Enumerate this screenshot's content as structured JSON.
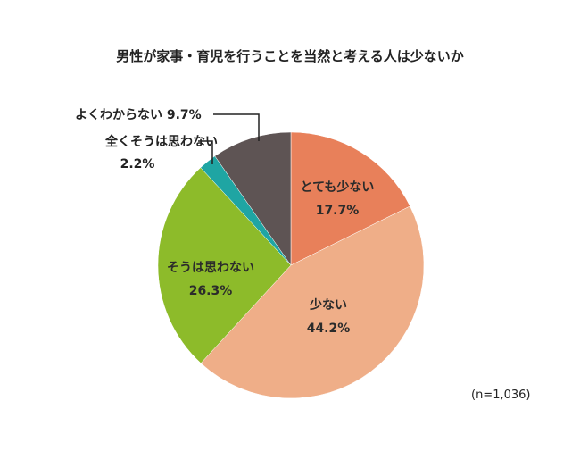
{
  "chart_data": {
    "type": "pie",
    "title": "男性が家事・育児を行うことを当然と考える人は少ないか",
    "note": "(n=1,036)",
    "slices": [
      {
        "label": "とても少ない",
        "value": 17.7,
        "value_label": "17.7%",
        "color": "#E8805A"
      },
      {
        "label": "少ない",
        "value": 44.2,
        "value_label": "44.2%",
        "color": "#EFAE88"
      },
      {
        "label": "そうは思わない",
        "value": 26.3,
        "value_label": "26.3%",
        "color": "#8DBB2A"
      },
      {
        "label": "全くそうは思わない",
        "value": 2.2,
        "value_label": "2.2%",
        "color": "#1FA5A3"
      },
      {
        "label": "よくわからない",
        "value": 9.7,
        "value_label": "9.7%",
        "color": "#5E5454"
      }
    ]
  }
}
